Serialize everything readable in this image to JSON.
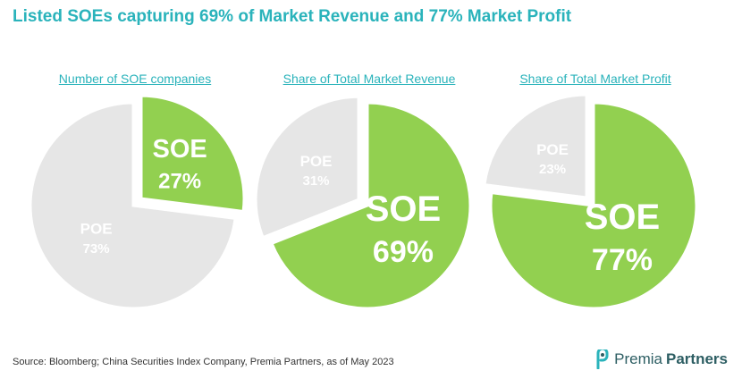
{
  "title": "Listed SOEs capturing 69% of Market Revenue and 77% Market Profit",
  "source": "Source: Bloomberg; China Securities Index Company, Premia Partners, as of May 2023",
  "brand": {
    "part1": "Premia",
    "part2": "Partners"
  },
  "colors": {
    "soe": "#92d050",
    "poe": "#e6e6e6",
    "accent": "#2ab3bb"
  },
  "chart_data": [
    {
      "type": "pie",
      "title": "Number of SOE companies",
      "slices": [
        {
          "label": "SOE",
          "value": 27,
          "display": "27%",
          "exploded": true
        },
        {
          "label": "POE",
          "value": 73,
          "display": "73%",
          "exploded": false
        }
      ]
    },
    {
      "type": "pie",
      "title": "Share of Total Market Revenue",
      "slices": [
        {
          "label": "SOE",
          "value": 69,
          "display": "69%",
          "exploded": false
        },
        {
          "label": "POE",
          "value": 31,
          "display": "31%",
          "exploded": true
        }
      ]
    },
    {
      "type": "pie",
      "title": "Share of Total Market Profit",
      "slices": [
        {
          "label": "SOE",
          "value": 77,
          "display": "77%",
          "exploded": false
        },
        {
          "label": "POE",
          "value": 23,
          "display": "23%",
          "exploded": true
        }
      ]
    }
  ]
}
